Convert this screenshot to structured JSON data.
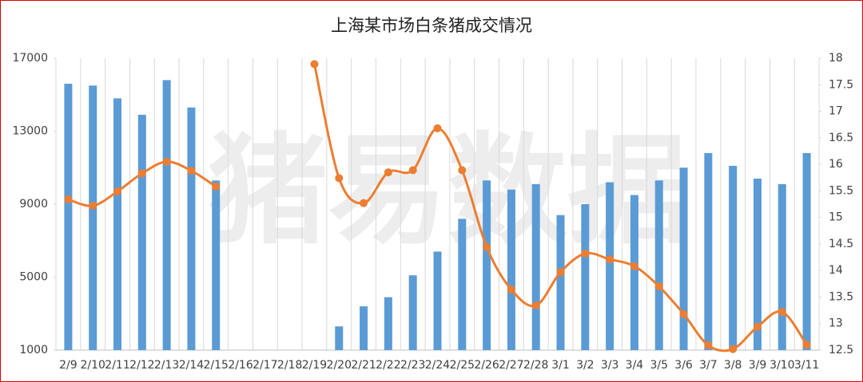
{
  "chart_data": {
    "type": "bar-line",
    "title": "上海某市场白条猪成交情况",
    "watermark": "猪易数据",
    "categories": [
      "2/9",
      "2/10",
      "2/11",
      "2/12",
      "2/13",
      "2/14",
      "2/15",
      "2/16",
      "2/17",
      "2/18",
      "2/19",
      "2/20",
      "2/21",
      "2/22",
      "2/23",
      "2/24",
      "2/25",
      "2/26",
      "2/27",
      "2/28",
      "3/1",
      "3/2",
      "3/3",
      "3/4",
      "3/5",
      "3/6",
      "3/7",
      "3/8",
      "3/9",
      "3/10",
      "3/11"
    ],
    "series": [
      {
        "type": "bar",
        "color": "#5b9bd5",
        "values": [
          15600,
          15500,
          14800,
          13900,
          15800,
          14300,
          10300,
          null,
          null,
          null,
          null,
          2300,
          3400,
          3900,
          5100,
          6400,
          8200,
          10300,
          9800,
          10100,
          8400,
          9000,
          10200,
          9500,
          10300,
          11000,
          11800,
          11100,
          10400,
          10100,
          11800
        ]
      },
      {
        "type": "line",
        "axis": "y2",
        "color": "#ed7d31",
        "values": [
          15.34,
          15.22,
          15.49,
          15.83,
          16.05,
          15.88,
          15.58,
          null,
          null,
          null,
          17.89,
          15.74,
          15.27,
          15.85,
          15.89,
          16.68,
          15.89,
          14.44,
          13.64,
          13.34,
          13.97,
          14.32,
          14.21,
          14.08,
          13.7,
          13.18,
          12.59,
          12.52,
          12.94,
          13.22,
          12.6
        ]
      }
    ],
    "ylim": [
      1000,
      17000
    ],
    "yticks": [
      1000,
      5000,
      9000,
      13000,
      17000
    ],
    "y2lim": [
      12.5,
      18
    ],
    "y2ticks": [
      12.5,
      13,
      13.5,
      14,
      14.5,
      15,
      15.5,
      16,
      16.5,
      17,
      17.5,
      18
    ]
  }
}
